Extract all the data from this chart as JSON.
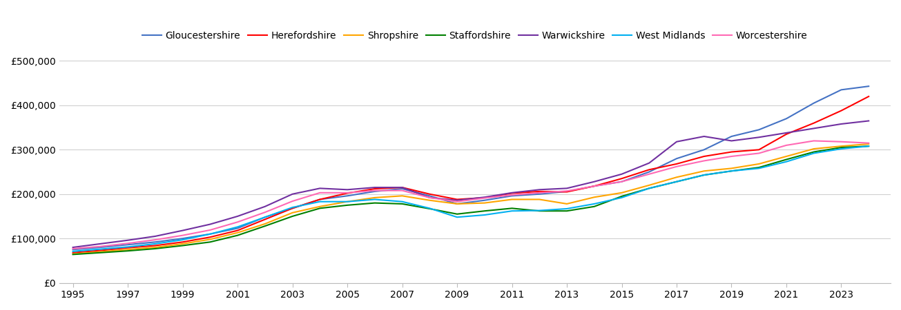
{
  "title": "",
  "series": {
    "Gloucestershire": {
      "color": "#4472C4",
      "data": {
        "1995": 75000,
        "1996": 80000,
        "1997": 86000,
        "1998": 92000,
        "1999": 100000,
        "2000": 110000,
        "2001": 123000,
        "2002": 148000,
        "2003": 168000,
        "2004": 188000,
        "2005": 196000,
        "2006": 206000,
        "2007": 212000,
        "2008": 196000,
        "2009": 178000,
        "2010": 186000,
        "2011": 196000,
        "2012": 200000,
        "2013": 206000,
        "2014": 218000,
        "2015": 228000,
        "2016": 250000,
        "2017": 280000,
        "2018": 300000,
        "2019": 330000,
        "2020": 345000,
        "2021": 370000,
        "2022": 405000,
        "2023": 435000,
        "2024": 443000
      }
    },
    "Herefordshire": {
      "color": "#FF0000",
      "data": {
        "1995": 68000,
        "1996": 73000,
        "1997": 79000,
        "1998": 84000,
        "1999": 92000,
        "2000": 103000,
        "2001": 118000,
        "2002": 143000,
        "2003": 168000,
        "2004": 188000,
        "2005": 202000,
        "2006": 212000,
        "2007": 215000,
        "2008": 200000,
        "2009": 188000,
        "2010": 192000,
        "2011": 202000,
        "2012": 206000,
        "2013": 205000,
        "2014": 218000,
        "2015": 235000,
        "2016": 255000,
        "2017": 268000,
        "2018": 285000,
        "2019": 295000,
        "2020": 300000,
        "2021": 335000,
        "2022": 360000,
        "2023": 388000,
        "2024": 420000
      }
    },
    "Shropshire": {
      "color": "#FFA500",
      "data": {
        "1995": 65000,
        "1996": 70000,
        "1997": 75000,
        "1998": 80000,
        "1999": 88000,
        "2000": 98000,
        "2001": 113000,
        "2002": 133000,
        "2003": 158000,
        "2004": 172000,
        "2005": 183000,
        "2006": 192000,
        "2007": 196000,
        "2008": 186000,
        "2009": 178000,
        "2010": 180000,
        "2011": 188000,
        "2012": 188000,
        "2013": 178000,
        "2014": 193000,
        "2015": 203000,
        "2016": 220000,
        "2017": 238000,
        "2018": 252000,
        "2019": 258000,
        "2020": 268000,
        "2021": 285000,
        "2022": 302000,
        "2023": 308000,
        "2024": 313000
      }
    },
    "Staffordshire": {
      "color": "#008000",
      "data": {
        "1995": 64000,
        "1996": 68000,
        "1997": 72000,
        "1998": 77000,
        "1999": 84000,
        "2000": 92000,
        "2001": 107000,
        "2002": 128000,
        "2003": 150000,
        "2004": 168000,
        "2005": 175000,
        "2006": 180000,
        "2007": 178000,
        "2008": 167000,
        "2009": 155000,
        "2010": 162000,
        "2011": 168000,
        "2012": 162000,
        "2013": 162000,
        "2014": 172000,
        "2015": 195000,
        "2016": 213000,
        "2017": 228000,
        "2018": 243000,
        "2019": 252000,
        "2020": 260000,
        "2021": 278000,
        "2022": 295000,
        "2023": 305000,
        "2024": 308000
      }
    },
    "Warwickshire": {
      "color": "#7030A0",
      "data": {
        "1995": 80000,
        "1996": 88000,
        "1997": 96000,
        "1998": 105000,
        "1999": 118000,
        "2000": 132000,
        "2001": 150000,
        "2002": 172000,
        "2003": 200000,
        "2004": 213000,
        "2005": 210000,
        "2006": 215000,
        "2007": 215000,
        "2008": 192000,
        "2009": 186000,
        "2010": 193000,
        "2011": 203000,
        "2012": 210000,
        "2013": 213000,
        "2014": 228000,
        "2015": 245000,
        "2016": 270000,
        "2017": 318000,
        "2018": 330000,
        "2019": 320000,
        "2020": 328000,
        "2021": 338000,
        "2022": 348000,
        "2023": 358000,
        "2024": 365000
      }
    },
    "West Midlands": {
      "color": "#00B0F0",
      "data": {
        "1995": 71000,
        "1996": 76000,
        "1997": 81000,
        "1998": 88000,
        "1999": 97000,
        "2000": 110000,
        "2001": 126000,
        "2002": 148000,
        "2003": 170000,
        "2004": 183000,
        "2005": 183000,
        "2006": 188000,
        "2007": 183000,
        "2008": 168000,
        "2009": 148000,
        "2010": 153000,
        "2011": 162000,
        "2012": 163000,
        "2013": 167000,
        "2014": 178000,
        "2015": 192000,
        "2016": 213000,
        "2017": 228000,
        "2018": 243000,
        "2019": 252000,
        "2020": 258000,
        "2021": 273000,
        "2022": 292000,
        "2023": 302000,
        "2024": 308000
      }
    },
    "Worcestershire": {
      "color": "#FF69B4",
      "data": {
        "1995": 77000,
        "1996": 82000,
        "1997": 89000,
        "1998": 97000,
        "1999": 107000,
        "2000": 119000,
        "2001": 137000,
        "2002": 159000,
        "2003": 184000,
        "2004": 203000,
        "2005": 203000,
        "2006": 208000,
        "2007": 208000,
        "2008": 192000,
        "2009": 183000,
        "2010": 191000,
        "2011": 198000,
        "2012": 203000,
        "2013": 207000,
        "2014": 218000,
        "2015": 228000,
        "2016": 245000,
        "2017": 262000,
        "2018": 275000,
        "2019": 285000,
        "2020": 292000,
        "2021": 310000,
        "2022": 320000,
        "2023": 318000,
        "2024": 315000
      }
    }
  },
  "ylim": [
    0,
    520000
  ],
  "yticks": [
    0,
    100000,
    200000,
    300000,
    400000,
    500000
  ],
  "ytick_labels": [
    "£0",
    "£100,000",
    "£200,000",
    "£300,000",
    "£400,000",
    "£500,000"
  ],
  "xtick_years": [
    "1995",
    "1997",
    "1999",
    "2001",
    "2003",
    "2005",
    "2007",
    "2009",
    "2011",
    "2013",
    "2015",
    "2017",
    "2019",
    "2021",
    "2023"
  ],
  "background_color": "#FFFFFF",
  "grid_color": "#D0D0D0",
  "line_width": 1.5,
  "legend_fontsize": 10,
  "tick_fontsize": 10
}
